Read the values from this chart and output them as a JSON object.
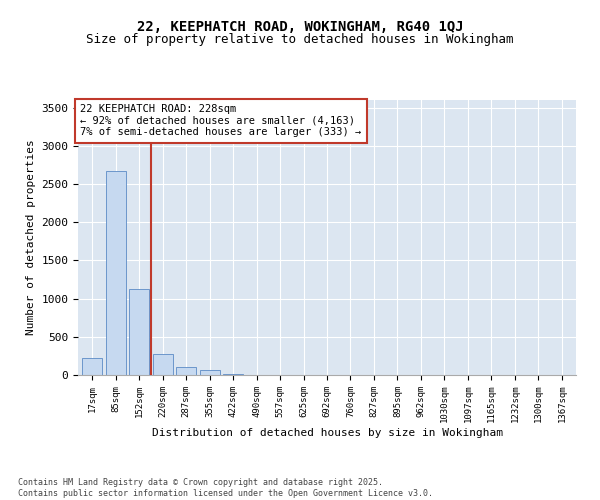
{
  "title_line1": "22, KEEPHATCH ROAD, WOKINGHAM, RG40 1QJ",
  "title_line2": "Size of property relative to detached houses in Wokingham",
  "xlabel": "Distribution of detached houses by size in Wokingham",
  "ylabel": "Number of detached properties",
  "categories": [
    "17sqm",
    "85sqm",
    "152sqm",
    "220sqm",
    "287sqm",
    "355sqm",
    "422sqm",
    "490sqm",
    "557sqm",
    "625sqm",
    "692sqm",
    "760sqm",
    "827sqm",
    "895sqm",
    "962sqm",
    "1030sqm",
    "1097sqm",
    "1165sqm",
    "1232sqm",
    "1300sqm",
    "1367sqm"
  ],
  "values": [
    220,
    2670,
    1130,
    270,
    110,
    65,
    10,
    0,
    0,
    0,
    0,
    0,
    0,
    0,
    0,
    0,
    0,
    0,
    0,
    0,
    0
  ],
  "bar_color": "#c6d9f0",
  "bar_edge_color": "#5b8bc5",
  "vline_color": "#c0392b",
  "vline_x": 2.5,
  "annotation_box_text": "22 KEEPHATCH ROAD: 228sqm\n← 92% of detached houses are smaller (4,163)\n7% of semi-detached houses are larger (333) →",
  "box_color": "#c0392b",
  "ylim": [
    0,
    3600
  ],
  "yticks": [
    0,
    500,
    1000,
    1500,
    2000,
    2500,
    3000,
    3500
  ],
  "bg_color": "#dce6f1",
  "grid_color": "#ffffff",
  "footer": "Contains HM Land Registry data © Crown copyright and database right 2025.\nContains public sector information licensed under the Open Government Licence v3.0.",
  "title_fontsize": 10,
  "subtitle_fontsize": 9,
  "annotation_fontsize": 7.5,
  "xlabel_fontsize": 8,
  "ylabel_fontsize": 8
}
